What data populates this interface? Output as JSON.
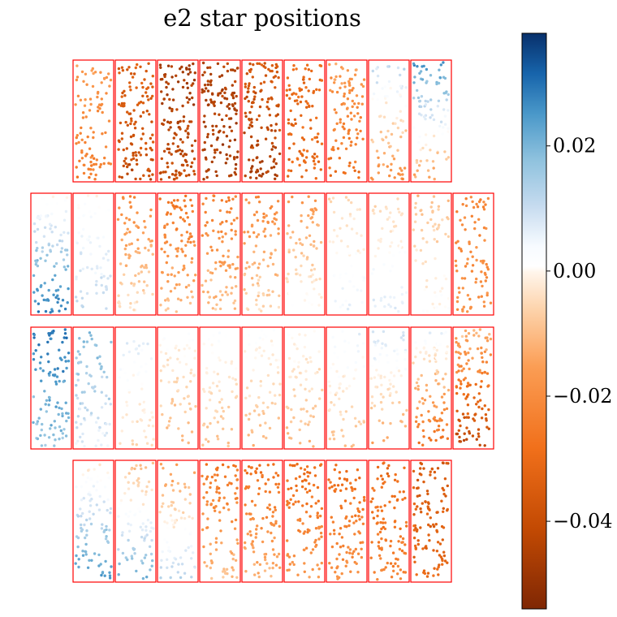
{
  "chart_data": {
    "type": "scatter",
    "title": "e2 star positions",
    "xlabel": "",
    "ylabel": "",
    "colormap": "PuOr-like diverging (dark orange -> white -> dark blue)",
    "color_range": [
      -0.054,
      0.038
    ],
    "colorbar_ticks": [
      {
        "value": 0.02,
        "label": "0.02"
      },
      {
        "value": 0.0,
        "label": "0.00"
      },
      {
        "value": -0.02,
        "label": "−0.02"
      },
      {
        "value": -0.04,
        "label": "−0.04"
      }
    ],
    "colors": {
      "chip_border": "#ff0000",
      "neg_dark": "#7f2704",
      "neg_mid": "#f68a30",
      "neutral": "#ffffff",
      "pos_mid": "#6baed6",
      "pos_dark": "#08306b"
    },
    "chip_rows": [
      {
        "row": 1,
        "chips": [
          {
            "start": -0.015,
            "end": -0.025,
            "spread": 0.005
          },
          {
            "start": -0.034,
            "end": -0.04,
            "spread": 0.006
          },
          {
            "start": -0.047,
            "end": -0.04,
            "spread": 0.006
          },
          {
            "start": -0.044,
            "end": -0.046,
            "spread": 0.006
          },
          {
            "start": -0.035,
            "end": -0.046,
            "spread": 0.006
          },
          {
            "start": -0.03,
            "end": -0.03,
            "spread": 0.006
          },
          {
            "start": -0.015,
            "end": -0.03,
            "spread": 0.006
          },
          {
            "start": 0.012,
            "end": -0.02,
            "spread": 0.006
          },
          {
            "start": 0.026,
            "end": -0.015,
            "spread": 0.006
          }
        ]
      },
      {
        "row": 2,
        "chips": [
          {
            "start": 0.0,
            "end": 0.03,
            "spread": 0.005
          },
          {
            "start": 0.0,
            "end": 0.012,
            "spread": 0.004
          },
          {
            "start": -0.022,
            "end": -0.002,
            "spread": 0.004
          },
          {
            "start": -0.028,
            "end": -0.008,
            "spread": 0.005
          },
          {
            "start": -0.025,
            "end": -0.008,
            "spread": 0.005
          },
          {
            "start": -0.022,
            "end": -0.004,
            "spread": 0.005
          },
          {
            "start": -0.018,
            "end": 0.003,
            "spread": 0.004
          },
          {
            "start": -0.006,
            "end": 0.006,
            "spread": 0.004
          },
          {
            "start": -0.006,
            "end": 0.008,
            "spread": 0.004
          },
          {
            "start": -0.01,
            "end": 0.002,
            "spread": 0.004
          },
          {
            "start": -0.022,
            "end": -0.018,
            "spread": 0.005
          }
        ]
      },
      {
        "row": 3,
        "chips": [
          {
            "start": 0.03,
            "end": 0.016,
            "spread": 0.005
          },
          {
            "start": 0.02,
            "end": 0.006,
            "spread": 0.005
          },
          {
            "start": 0.008,
            "end": -0.006,
            "spread": 0.004
          },
          {
            "start": 0.002,
            "end": -0.012,
            "spread": 0.004
          },
          {
            "start": 0.003,
            "end": -0.01,
            "spread": 0.004
          },
          {
            "start": 0.002,
            "end": -0.012,
            "spread": 0.004
          },
          {
            "start": 0.002,
            "end": -0.012,
            "spread": 0.004
          },
          {
            "start": 0.006,
            "end": -0.01,
            "spread": 0.004
          },
          {
            "start": 0.01,
            "end": -0.016,
            "spread": 0.004
          },
          {
            "start": 0.006,
            "end": -0.03,
            "spread": 0.005
          },
          {
            "start": -0.01,
            "end": -0.044,
            "spread": 0.006
          }
        ]
      },
      {
        "row": 4,
        "chips": [
          {
            "start": -0.002,
            "end": 0.026,
            "spread": 0.004
          },
          {
            "start": -0.012,
            "end": 0.022,
            "spread": 0.004
          },
          {
            "start": -0.018,
            "end": 0.014,
            "spread": 0.004
          },
          {
            "start": -0.028,
            "end": -0.008,
            "spread": 0.005
          },
          {
            "start": -0.03,
            "end": -0.01,
            "spread": 0.005
          },
          {
            "start": -0.03,
            "end": -0.016,
            "spread": 0.005
          },
          {
            "start": -0.03,
            "end": -0.018,
            "spread": 0.005
          },
          {
            "start": -0.03,
            "end": -0.022,
            "spread": 0.005
          },
          {
            "start": -0.036,
            "end": -0.03,
            "spread": 0.006
          }
        ]
      }
    ]
  }
}
